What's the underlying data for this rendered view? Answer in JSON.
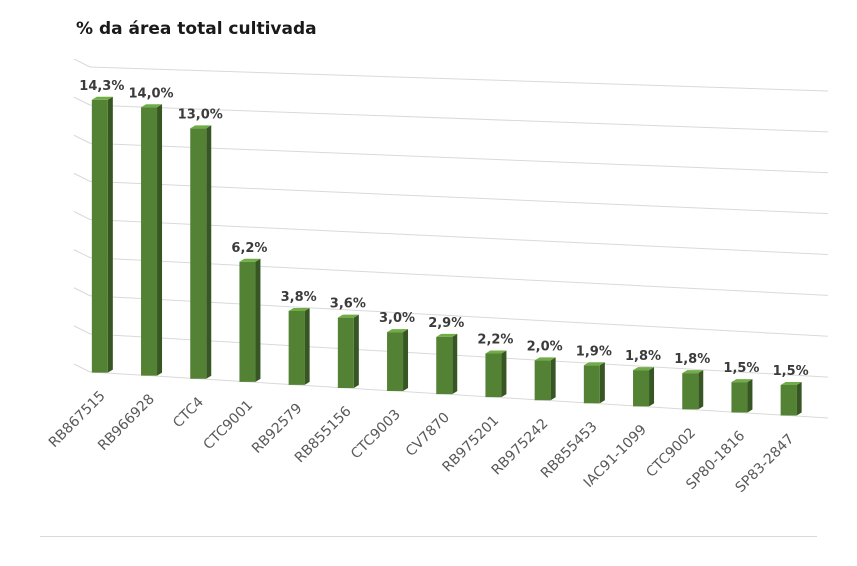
{
  "chart_data": {
    "type": "bar",
    "title": "% da área total cultivada",
    "xlabel": "",
    "ylabel": "",
    "ylim": [
      0,
      16
    ],
    "grid": true,
    "categories": [
      "RB867515",
      "RB966928",
      "CTC4",
      "CTC9001",
      "RB92579",
      "RB855156",
      "CTC9003",
      "CV7870",
      "RB975201",
      "RB975242",
      "RB855453",
      "IAC91-1099",
      "CTC9002",
      "SP80-1816",
      "SP83-2847"
    ],
    "values": [
      14.3,
      14.0,
      13.0,
      6.2,
      3.8,
      3.6,
      3.0,
      2.9,
      2.2,
      2.0,
      1.9,
      1.8,
      1.8,
      1.5,
      1.5
    ],
    "data_labels": [
      "14,3%",
      "14,0%",
      "13,0%",
      "6,2%",
      "3,8%",
      "3,6%",
      "3,0%",
      "2,9%",
      "2,2%",
      "2,0%",
      "1,9%",
      "1,8%",
      "1,8%",
      "1,5%",
      "1,5%"
    ],
    "colors": {
      "bar_front": "#548235",
      "bar_side": "#375623",
      "bar_top": "#70ad47",
      "grid": "#d9d9d9"
    }
  }
}
